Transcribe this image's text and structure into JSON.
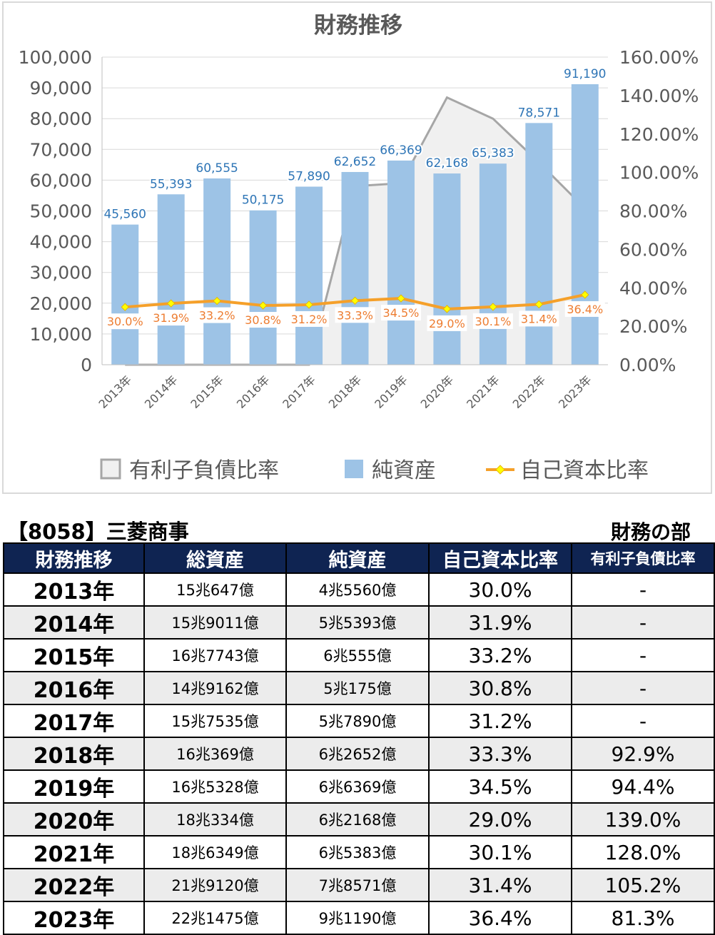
{
  "chart_data": {
    "type": "bar",
    "title": "財務推移",
    "categories": [
      "2013年",
      "2014年",
      "2015年",
      "2016年",
      "2017年",
      "2018年",
      "2019年",
      "2020年",
      "2021年",
      "2022年",
      "2023年"
    ],
    "y_left": {
      "ticks": [
        "0",
        "10,000",
        "20,000",
        "30,000",
        "40,000",
        "50,000",
        "60,000",
        "70,000",
        "80,000",
        "90,000",
        "100,000"
      ],
      "range": [
        0,
        100000
      ]
    },
    "y_right": {
      "ticks": [
        "0.00%",
        "20.00%",
        "40.00%",
        "60.00%",
        "80.00%",
        "100.00%",
        "120.00%",
        "140.00%",
        "160.00%"
      ],
      "range": [
        0,
        160
      ]
    },
    "series": [
      {
        "name": "有利子負債比率",
        "type": "area",
        "axis": "right",
        "color": "#a6a6a6",
        "values": [
          0,
          0,
          0,
          0,
          0,
          92.9,
          94.4,
          139.0,
          128.0,
          105.2,
          81.3
        ]
      },
      {
        "name": "純資産",
        "type": "bar",
        "axis": "left",
        "color": "#9dc3e6",
        "values": [
          45560,
          55393,
          60555,
          50175,
          57890,
          62652,
          66369,
          62168,
          65383,
          78571,
          91190
        ],
        "labels": [
          "45,560",
          "55,393",
          "60,555",
          "50,175",
          "57,890",
          "62,652",
          "66,369",
          "62,168",
          "65,383",
          "78,571",
          "91,190"
        ]
      },
      {
        "name": "自己資本比率",
        "type": "line",
        "axis": "right",
        "color": "#f5a02a",
        "values": [
          30.0,
          31.9,
          33.2,
          30.8,
          31.2,
          33.3,
          34.5,
          29.0,
          30.1,
          31.4,
          36.4
        ],
        "labels": [
          "30.0%",
          "31.9%",
          "33.2%",
          "30.8%",
          "31.2%",
          "33.3%",
          "34.5%",
          "29.0%",
          "30.1%",
          "31.4%",
          "36.4%"
        ]
      }
    ],
    "legend": "bottom"
  },
  "company": "【8058】三菱商事",
  "section": "財務の部",
  "table": {
    "headers": [
      "財務推移",
      "総資産",
      "純資産",
      "自己資本比率",
      "有利子負債比率"
    ],
    "rows": [
      [
        "2013年",
        "15兆647億",
        "4兆5560億",
        "30.0%",
        "-"
      ],
      [
        "2014年",
        "15兆9011億",
        "5兆5393億",
        "31.9%",
        "-"
      ],
      [
        "2015年",
        "16兆7743億",
        "6兆555億",
        "33.2%",
        "-"
      ],
      [
        "2016年",
        "14兆9162億",
        "5兆175億",
        "30.8%",
        "-"
      ],
      [
        "2017年",
        "15兆7535億",
        "5兆7890億",
        "31.2%",
        "-"
      ],
      [
        "2018年",
        "16兆369億",
        "6兆2652億",
        "33.3%",
        "92.9%"
      ],
      [
        "2019年",
        "16兆5328億",
        "6兆6369億",
        "34.5%",
        "94.4%"
      ],
      [
        "2020年",
        "18兆334億",
        "6兆2168億",
        "29.0%",
        "139.0%"
      ],
      [
        "2021年",
        "18兆6349億",
        "6兆5383億",
        "30.1%",
        "128.0%"
      ],
      [
        "2022年",
        "21兆9120億",
        "7兆8571億",
        "31.4%",
        "105.2%"
      ],
      [
        "2023年",
        "22兆1475億",
        "9兆1190億",
        "36.4%",
        "81.3%"
      ]
    ]
  }
}
